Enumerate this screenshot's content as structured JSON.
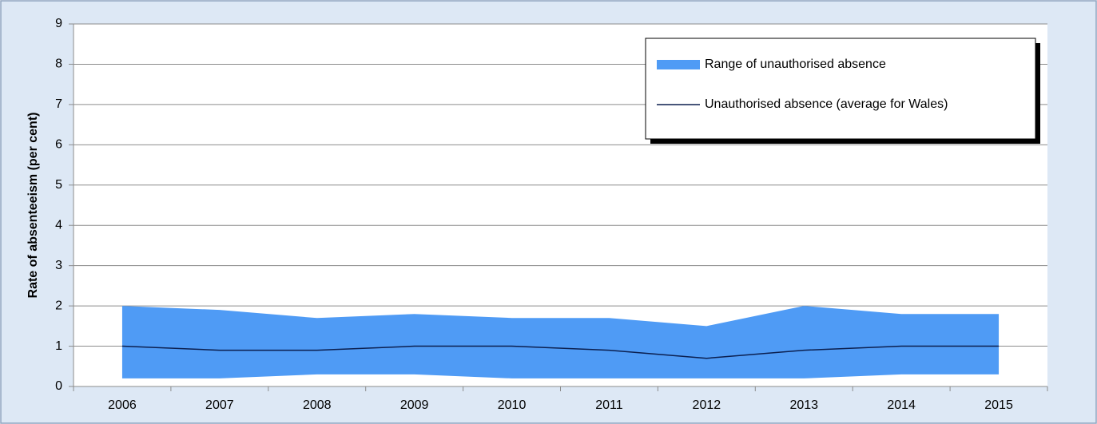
{
  "chart_data": {
    "type": "area",
    "y_label": "Rate of absenteeism (per cent)",
    "categories": [
      "2006",
      "2007",
      "2008",
      "2009",
      "2010",
      "2011",
      "2012",
      "2013",
      "2014",
      "2015"
    ],
    "series": [
      {
        "name": "Range of unauthorised absence",
        "color": "#4f9bf5",
        "high": [
          2.0,
          1.9,
          1.7,
          1.8,
          1.7,
          1.7,
          1.5,
          2.0,
          1.8,
          1.8
        ],
        "low": [
          0.2,
          0.2,
          0.3,
          0.3,
          0.2,
          0.2,
          0.2,
          0.2,
          0.3,
          0.3
        ]
      },
      {
        "name": "Unauthorised absence (average for Wales)",
        "color": "#0b1f4f",
        "values": [
          1.0,
          0.9,
          0.9,
          1.0,
          1.0,
          0.9,
          0.7,
          0.9,
          1.0,
          1.0
        ]
      }
    ],
    "ylim": [
      0,
      9
    ],
    "yticks": [
      0,
      1,
      2,
      3,
      4,
      5,
      6,
      7,
      8,
      9
    ],
    "grid": true,
    "legend": "top-right"
  }
}
